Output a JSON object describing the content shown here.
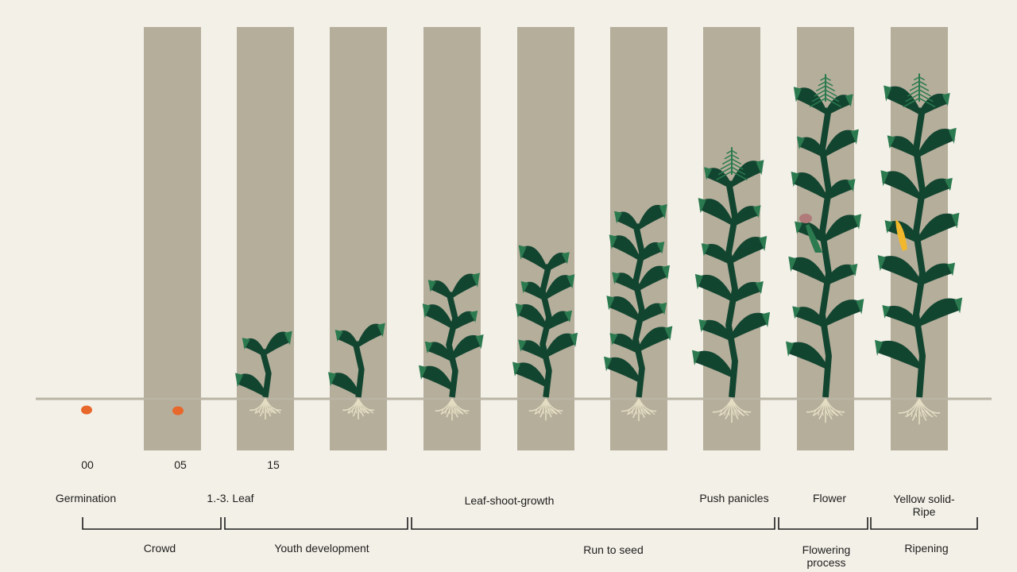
{
  "codes": [
    "00",
    "05",
    "15"
  ],
  "stages": {
    "germination": "Germination",
    "leaf_1_3": "1.-3. Leaf",
    "leaf_shoot_growth": "Leaf-shoot-growth",
    "push_panicles": "Push panicles",
    "flower": "Flower",
    "yellow_solid_ripe": "Yellow solid-\nRipe"
  },
  "phases": {
    "crowd": "Crowd",
    "youth_development": "Youth development",
    "run_to_seed": "Run to seed",
    "flowering_process": "Flowering process",
    "ripening": "Ripening"
  },
  "colors": {
    "background": "#f3f0e8",
    "column": "#b5ae9b",
    "ground": "#b9b4a4",
    "leaf_dark": "#124530",
    "leaf_light": "#2b7a4f",
    "root": "#e4ddc3",
    "seed": "#e8672b",
    "cob": "#f1b82d",
    "silk": "#b07a7a",
    "bracket": "#1d1d1b"
  }
}
